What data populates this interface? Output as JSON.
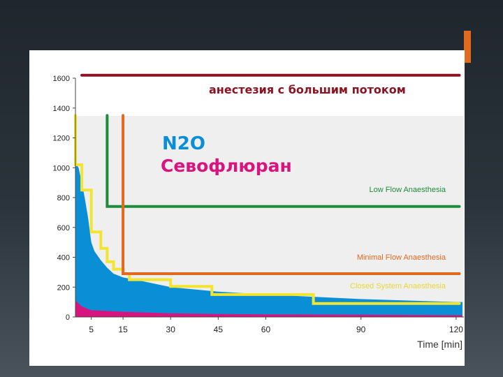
{
  "slide": {
    "accent_color": "#e06a1f"
  },
  "chart_data": {
    "type": "area",
    "xlabel": "Time [min]",
    "x_ticks": [
      5,
      15,
      30,
      45,
      60,
      90,
      120
    ],
    "y_ticks": [
      0,
      200,
      400,
      600,
      800,
      1000,
      1200,
      1400,
      1600
    ],
    "xlim": [
      0,
      122
    ],
    "ylim": [
      0,
      1600
    ],
    "grid": false,
    "annotations": {
      "high_flow": "анестезия с большим потоком",
      "n2o": "N2O",
      "sevo": "Севофлюран",
      "low_flow": "Low Flow Anaesthesia",
      "minimal_flow": "Minimal Flow Anaesthesia",
      "closed_system": "Closed System Anaesthesia"
    },
    "series": [
      {
        "name": "N2O",
        "color": "#0a8fd6",
        "kind": "area",
        "x": [
          0,
          1,
          2,
          3,
          4,
          5,
          6,
          8,
          10,
          12,
          15,
          20,
          30,
          45,
          60,
          90,
          120,
          122
        ],
        "y": [
          1030,
          1000,
          900,
          790,
          660,
          500,
          440,
          380,
          330,
          290,
          265,
          245,
          200,
          170,
          150,
          120,
          100,
          100
        ]
      },
      {
        "name": "Севофлюран",
        "color": "#d8147f",
        "kind": "area",
        "x": [
          0,
          2,
          5,
          10,
          15,
          30,
          45,
          60,
          90,
          120,
          122
        ],
        "y": [
          110,
          70,
          45,
          40,
          35,
          25,
          20,
          18,
          15,
          12,
          12
        ]
      },
      {
        "color": "#f2e431",
        "kind": "step",
        "x": [
          0,
          0,
          2,
          2,
          5,
          5,
          8,
          8,
          10,
          10,
          12,
          12,
          15,
          15,
          17,
          17,
          30,
          30,
          43,
          43,
          75,
          75,
          121
        ],
        "y": [
          1350,
          1020,
          1020,
          850,
          850,
          570,
          570,
          460,
          460,
          370,
          370,
          320,
          320,
          290,
          290,
          250,
          250,
          205,
          205,
          150,
          150,
          90,
          90
        ]
      },
      {
        "color": "#1e8c3a",
        "kind": "step",
        "x": [
          10,
          10,
          121
        ],
        "y": [
          1350,
          740,
          740
        ]
      },
      {
        "color": "#e06a1f",
        "kind": "step",
        "x": [
          15,
          15,
          121
        ],
        "y": [
          1350,
          290,
          290
        ]
      },
      {
        "color": "#8b1420",
        "kind": "step",
        "x": [
          2,
          121
        ],
        "y": [
          1620,
          1620
        ]
      }
    ]
  }
}
